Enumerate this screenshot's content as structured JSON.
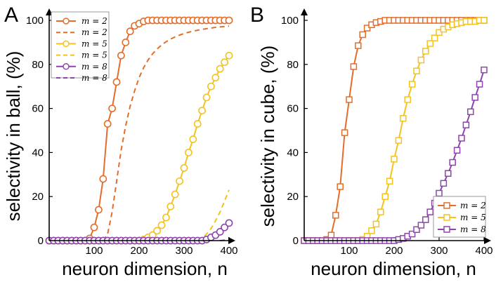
{
  "figure": {
    "panel_a_label": "A",
    "panel_b_label": "B"
  },
  "colors": {
    "m2": "#e46d2a",
    "m5": "#f3c320",
    "m8": "#8e44ad"
  },
  "chart_data": [
    {
      "type": "line",
      "panel": "A",
      "xlabel": "neuron dimension, n",
      "ylabel": "selectivity in ball, (%)",
      "xlim": [
        0,
        400
      ],
      "ylim": [
        0,
        100
      ],
      "xticks": [
        100,
        200,
        300,
        400
      ],
      "yticks": [
        0,
        20,
        40,
        60,
        80,
        100
      ],
      "legend_position": "top-left",
      "legend": [
        "m = 2",
        "m = 2",
        "m = 5",
        "m = 5",
        "m = 8",
        "m = 8"
      ],
      "series": [
        {
          "name": "m = 2 (markers)",
          "color": "#e46d2a",
          "style": "solid",
          "marker": "circle",
          "x": [
            0,
            10,
            20,
            30,
            40,
            50,
            60,
            70,
            80,
            90,
            100,
            110,
            120,
            130,
            140,
            150,
            160,
            170,
            180,
            190,
            200,
            210,
            220,
            230,
            240,
            250,
            260,
            270,
            280,
            290,
            300,
            310,
            320,
            330,
            340,
            350,
            360,
            370,
            380,
            390,
            400
          ],
          "y": [
            0,
            0,
            0,
            0,
            0,
            0,
            0,
            0,
            0,
            1,
            6,
            14,
            28,
            53,
            60,
            72,
            84,
            90,
            95,
            97.5,
            98.5,
            99.5,
            100,
            100,
            100,
            100,
            100,
            100,
            100,
            100,
            100,
            100,
            100,
            100,
            100,
            100,
            100,
            100,
            100,
            100,
            100
          ]
        },
        {
          "name": "m = 2 (dashed)",
          "color": "#e46d2a",
          "style": "dashed",
          "marker": "none",
          "x": [
            120,
            130,
            140,
            150,
            160,
            170,
            180,
            190,
            200,
            210,
            220,
            230,
            240,
            250,
            260,
            270,
            280,
            290,
            300,
            310,
            320,
            330,
            340,
            350,
            360,
            370,
            380,
            390,
            400
          ],
          "y": [
            0,
            3,
            13,
            27,
            41,
            52,
            61,
            68,
            74,
            78.5,
            82,
            84.8,
            87,
            88.8,
            90.3,
            91.5,
            92.5,
            93.3,
            94,
            94.6,
            95.1,
            95.5,
            95.9,
            96.2,
            96.5,
            96.8,
            97,
            97.2,
            97.4
          ]
        },
        {
          "name": "m = 5 (markers)",
          "color": "#f3c320",
          "style": "solid",
          "marker": "circle",
          "x": [
            0,
            10,
            20,
            30,
            40,
            50,
            60,
            70,
            80,
            90,
            100,
            110,
            120,
            130,
            140,
            150,
            160,
            170,
            180,
            190,
            200,
            210,
            220,
            230,
            240,
            250,
            260,
            270,
            280,
            290,
            300,
            310,
            320,
            330,
            340,
            350,
            360,
            370,
            380,
            390,
            400
          ],
          "y": [
            0,
            0,
            0,
            0,
            0,
            0,
            0,
            0,
            0,
            0,
            0,
            0,
            0,
            0,
            0,
            0,
            0,
            0,
            0,
            0,
            0,
            0.5,
            1.5,
            2.5,
            4.5,
            7,
            10.5,
            15.5,
            21,
            27,
            33,
            40,
            46,
            53,
            59,
            65,
            70,
            74,
            78,
            81,
            84
          ]
        },
        {
          "name": "m = 5 (dashed)",
          "color": "#f3c320",
          "style": "dashed",
          "marker": "none",
          "x": [
            330,
            340,
            350,
            360,
            370,
            380,
            390,
            400
          ],
          "y": [
            0,
            1,
            3,
            5.5,
            9,
            13,
            18,
            23
          ]
        },
        {
          "name": "m = 8 (markers)",
          "color": "#8e44ad",
          "style": "solid",
          "marker": "circle",
          "x": [
            0,
            10,
            20,
            30,
            40,
            50,
            60,
            70,
            80,
            90,
            100,
            110,
            120,
            130,
            140,
            150,
            160,
            170,
            180,
            190,
            200,
            210,
            220,
            230,
            240,
            250,
            260,
            270,
            280,
            290,
            300,
            310,
            320,
            330,
            340,
            350,
            360,
            370,
            380,
            390,
            400
          ],
          "y": [
            0,
            0,
            0,
            0,
            0,
            0,
            0,
            0,
            0,
            0,
            0,
            0,
            0,
            0,
            0,
            0,
            0,
            0,
            0,
            0,
            0,
            0,
            0,
            0,
            0,
            0,
            0,
            0,
            0,
            0,
            0,
            0,
            0,
            0,
            0,
            0.5,
            1.5,
            2.5,
            4,
            6,
            8
          ]
        },
        {
          "name": "m = 8 (dashed)",
          "color": "#8e44ad",
          "style": "dashed",
          "marker": "none",
          "x": [
            380,
            390,
            400
          ],
          "y": [
            0,
            0.2,
            0.5
          ]
        }
      ]
    },
    {
      "type": "line",
      "panel": "B",
      "xlabel": "neuron dimension, n",
      "ylabel": "selectivity in cube, (%)",
      "xlim": [
        0,
        400
      ],
      "ylim": [
        0,
        100
      ],
      "xticks": [
        100,
        200,
        300,
        400
      ],
      "yticks": [
        0,
        20,
        40,
        60,
        80,
        100
      ],
      "legend_position": "bottom-right",
      "legend": [
        "m = 2",
        "m = 5",
        "m = 8"
      ],
      "series": [
        {
          "name": "m = 2",
          "color": "#e46d2a",
          "style": "solid",
          "marker": "square",
          "x": [
            0,
            10,
            20,
            30,
            40,
            50,
            60,
            70,
            80,
            90,
            100,
            110,
            120,
            130,
            140,
            150,
            160,
            170,
            180,
            190,
            200,
            210,
            220,
            230,
            240,
            250,
            260,
            270,
            280,
            290,
            300,
            310,
            320,
            330,
            340,
            350,
            360,
            370,
            380,
            390,
            400
          ],
          "y": [
            0,
            0,
            0,
            0,
            0,
            0.5,
            2.5,
            11.5,
            24.5,
            49,
            64,
            79,
            88.5,
            93.5,
            96.5,
            98,
            99,
            99.5,
            100,
            100,
            100,
            100,
            100,
            100,
            100,
            100,
            100,
            100,
            100,
            100,
            100,
            100,
            100,
            100,
            100,
            100,
            100,
            100,
            100,
            100,
            100
          ]
        },
        {
          "name": "m = 5",
          "color": "#f3c320",
          "style": "solid",
          "marker": "square",
          "x": [
            0,
            10,
            20,
            30,
            40,
            50,
            60,
            70,
            80,
            90,
            100,
            110,
            120,
            130,
            140,
            150,
            160,
            170,
            180,
            190,
            200,
            210,
            220,
            230,
            240,
            250,
            260,
            270,
            280,
            290,
            300,
            310,
            320,
            330,
            340,
            350,
            360,
            370,
            380,
            390,
            400
          ],
          "y": [
            0,
            0,
            0,
            0,
            0,
            0,
            0,
            0,
            0,
            0,
            0,
            0,
            0,
            0.5,
            2,
            4.5,
            7.5,
            13,
            20,
            27,
            37,
            45.5,
            55.5,
            64,
            71,
            77,
            82,
            86,
            89.5,
            92,
            94.5,
            96,
            97,
            98,
            98.5,
            99,
            99.5,
            99.5,
            99.5,
            100,
            100
          ]
        },
        {
          "name": "m = 8",
          "color": "#8e44ad",
          "style": "solid",
          "marker": "square",
          "x": [
            0,
            10,
            20,
            30,
            40,
            50,
            60,
            70,
            80,
            90,
            100,
            110,
            120,
            130,
            140,
            150,
            160,
            170,
            180,
            190,
            200,
            210,
            220,
            230,
            240,
            250,
            260,
            270,
            280,
            290,
            300,
            310,
            320,
            330,
            340,
            350,
            360,
            370,
            380,
            390,
            400
          ],
          "y": [
            0,
            0,
            0,
            0,
            0,
            0,
            0,
            0,
            0,
            0,
            0,
            0,
            0,
            0,
            0,
            0,
            0,
            0,
            0,
            0,
            0,
            0.5,
            1,
            2,
            3,
            5,
            7,
            9.5,
            13,
            17,
            21.5,
            26,
            30.5,
            35.5,
            41,
            46.5,
            52.5,
            58.5,
            65,
            71,
            77.5
          ]
        }
      ]
    }
  ]
}
